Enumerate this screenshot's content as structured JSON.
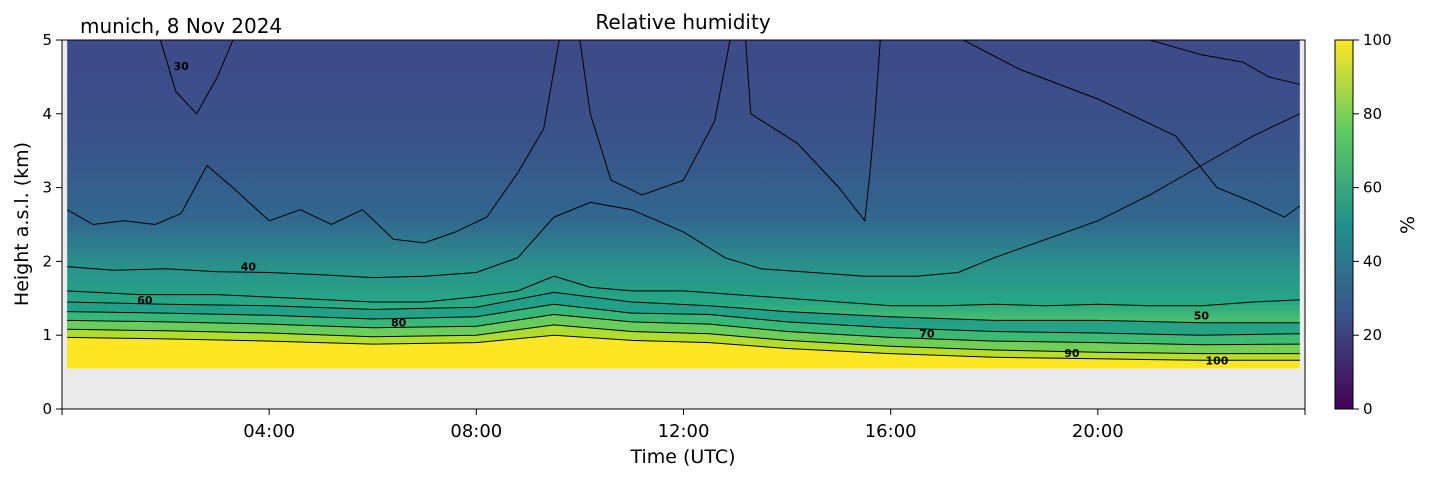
{
  "header": {
    "location_date": "munich, 8 Nov 2024",
    "title": "Relative humidity"
  },
  "chart_data": {
    "type": "heatmap",
    "title": "Relative humidity",
    "corner_text": "munich, 8 Nov 2024",
    "xlabel": "Time (UTC)",
    "ylabel": "Height a.s.l. (km)",
    "x_unit": "hours UTC",
    "xlim": [
      0,
      24
    ],
    "ylim": [
      0,
      5
    ],
    "x_ticks": [
      {
        "value": 4,
        "label": "04:00"
      },
      {
        "value": 8,
        "label": "08:00"
      },
      {
        "value": 12,
        "label": "12:00"
      },
      {
        "value": 16,
        "label": "16:00"
      },
      {
        "value": 20,
        "label": "20:00"
      }
    ],
    "y_ticks": [
      {
        "value": 0,
        "label": "0"
      },
      {
        "value": 1,
        "label": "1"
      },
      {
        "value": 2,
        "label": "2"
      },
      {
        "value": 3,
        "label": "3"
      },
      {
        "value": 4,
        "label": "4"
      },
      {
        "value": 5,
        "label": "5"
      }
    ],
    "colorbar": {
      "label": "%",
      "range": [
        0,
        100
      ],
      "colormap": "viridis",
      "colors": [
        "#440154",
        "#3b528b",
        "#21918c",
        "#5ec962",
        "#fde725"
      ],
      "ticks": [
        {
          "value": 0,
          "label": "0"
        },
        {
          "value": 20,
          "label": "20"
        },
        {
          "value": 40,
          "label": "40"
        },
        {
          "value": 60,
          "label": "60"
        },
        {
          "value": 80,
          "label": "80"
        },
        {
          "value": 100,
          "label": "100"
        }
      ]
    },
    "data_lowest_height_km": 0.55,
    "data_time_range": [
      0.1,
      23.9
    ],
    "no_data_color": "#ebebeb",
    "contour_levels": [
      30,
      40,
      50,
      60,
      70,
      80,
      90,
      100
    ],
    "contour_lines": [
      {
        "level": 30,
        "points": [
          [
            0.1,
            2.7
          ],
          [
            0.6,
            2.5
          ],
          [
            1.2,
            2.55
          ],
          [
            1.8,
            2.5
          ],
          [
            2.3,
            2.65
          ],
          [
            2.8,
            3.3
          ],
          [
            3.3,
            3.0
          ],
          [
            4.0,
            2.55
          ],
          [
            4.6,
            2.7
          ],
          [
            5.2,
            2.5
          ],
          [
            5.8,
            2.7
          ],
          [
            6.4,
            2.3
          ],
          [
            7.0,
            2.25
          ],
          [
            7.6,
            2.4
          ],
          [
            8.2,
            2.6
          ],
          [
            8.8,
            3.2
          ],
          [
            9.3,
            3.8
          ],
          [
            9.6,
            5.0
          ]
        ]
      },
      {
        "level": 30,
        "points": [
          [
            10.0,
            5.0
          ],
          [
            10.2,
            4.0
          ],
          [
            10.6,
            3.1
          ],
          [
            11.2,
            2.9
          ],
          [
            12.0,
            3.1
          ],
          [
            12.6,
            3.9
          ],
          [
            12.9,
            5.0
          ]
        ]
      },
      {
        "level": 30,
        "points": [
          [
            15.8,
            5.0
          ],
          [
            15.7,
            4.0
          ],
          [
            15.6,
            3.2
          ],
          [
            15.5,
            2.55
          ],
          [
            15.0,
            3.0
          ],
          [
            14.2,
            3.6
          ],
          [
            13.3,
            4.0
          ],
          [
            13.2,
            5.0
          ]
        ]
      },
      {
        "level": 30,
        "points": [
          [
            1.9,
            5.0
          ],
          [
            2.2,
            4.3
          ],
          [
            2.6,
            4.0
          ],
          [
            3.0,
            4.5
          ],
          [
            3.3,
            5.0
          ]
        ]
      },
      {
        "level": 30,
        "points": [
          [
            17.4,
            5.0
          ],
          [
            18.5,
            4.6
          ],
          [
            20.0,
            4.2
          ],
          [
            21.5,
            3.7
          ],
          [
            22.3,
            3.0
          ],
          [
            23.0,
            2.8
          ],
          [
            23.6,
            2.6
          ],
          [
            23.9,
            2.75
          ]
        ]
      },
      {
        "level": 30,
        "points": [
          [
            21.0,
            5.0
          ],
          [
            22.0,
            4.8
          ],
          [
            22.8,
            4.7
          ],
          [
            23.3,
            4.5
          ],
          [
            23.9,
            4.4
          ]
        ]
      },
      {
        "level": 40,
        "points": [
          [
            0.1,
            1.93
          ],
          [
            1.0,
            1.88
          ],
          [
            2.0,
            1.9
          ],
          [
            3.0,
            1.86
          ],
          [
            4.0,
            1.85
          ],
          [
            5.0,
            1.82
          ],
          [
            6.0,
            1.78
          ],
          [
            7.0,
            1.8
          ],
          [
            8.0,
            1.85
          ],
          [
            8.8,
            2.05
          ],
          [
            9.5,
            2.6
          ],
          [
            10.2,
            2.8
          ],
          [
            11.0,
            2.7
          ],
          [
            12.0,
            2.4
          ],
          [
            12.8,
            2.05
          ],
          [
            13.5,
            1.9
          ],
          [
            14.5,
            1.85
          ],
          [
            15.5,
            1.8
          ],
          [
            16.5,
            1.8
          ],
          [
            17.3,
            1.85
          ],
          [
            18.0,
            2.05
          ],
          [
            19.0,
            2.3
          ],
          [
            20.0,
            2.55
          ],
          [
            21.0,
            2.9
          ],
          [
            22.0,
            3.3
          ],
          [
            23.0,
            3.7
          ],
          [
            23.9,
            4.0
          ]
        ]
      },
      {
        "level": 50,
        "points": [
          [
            0.1,
            1.6
          ],
          [
            1.5,
            1.55
          ],
          [
            3.0,
            1.55
          ],
          [
            4.5,
            1.5
          ],
          [
            6.0,
            1.45
          ],
          [
            7.0,
            1.45
          ],
          [
            8.0,
            1.52
          ],
          [
            8.8,
            1.6
          ],
          [
            9.5,
            1.8
          ],
          [
            10.2,
            1.65
          ],
          [
            11.0,
            1.6
          ],
          [
            12.0,
            1.6
          ],
          [
            13.0,
            1.55
          ],
          [
            14.0,
            1.5
          ],
          [
            15.0,
            1.45
          ],
          [
            16.0,
            1.4
          ],
          [
            17.0,
            1.4
          ],
          [
            18.0,
            1.42
          ],
          [
            19.0,
            1.4
          ],
          [
            20.0,
            1.42
          ],
          [
            21.0,
            1.4
          ],
          [
            22.0,
            1.4
          ],
          [
            23.0,
            1.45
          ],
          [
            23.9,
            1.48
          ]
        ]
      },
      {
        "level": 60,
        "points": [
          [
            0.1,
            1.45
          ],
          [
            2.0,
            1.42
          ],
          [
            4.0,
            1.4
          ],
          [
            6.0,
            1.35
          ],
          [
            8.0,
            1.38
          ],
          [
            9.5,
            1.58
          ],
          [
            11.0,
            1.45
          ],
          [
            12.5,
            1.4
          ],
          [
            14.0,
            1.32
          ],
          [
            16.0,
            1.25
          ],
          [
            18.0,
            1.2
          ],
          [
            20.0,
            1.2
          ],
          [
            22.0,
            1.17
          ],
          [
            23.9,
            1.17
          ]
        ]
      },
      {
        "level": 70,
        "points": [
          [
            0.1,
            1.32
          ],
          [
            2.0,
            1.3
          ],
          [
            4.0,
            1.27
          ],
          [
            6.0,
            1.22
          ],
          [
            8.0,
            1.25
          ],
          [
            9.5,
            1.42
          ],
          [
            11.0,
            1.3
          ],
          [
            12.5,
            1.28
          ],
          [
            14.0,
            1.18
          ],
          [
            16.0,
            1.1
          ],
          [
            18.0,
            1.05
          ],
          [
            20.0,
            1.03
          ],
          [
            22.0,
            1.0
          ],
          [
            23.9,
            1.02
          ]
        ]
      },
      {
        "level": 80,
        "points": [
          [
            0.1,
            1.2
          ],
          [
            2.0,
            1.18
          ],
          [
            4.0,
            1.15
          ],
          [
            6.0,
            1.1
          ],
          [
            8.0,
            1.12
          ],
          [
            9.5,
            1.28
          ],
          [
            11.0,
            1.18
          ],
          [
            12.5,
            1.15
          ],
          [
            14.0,
            1.05
          ],
          [
            16.0,
            0.97
          ],
          [
            18.0,
            0.92
          ],
          [
            20.0,
            0.9
          ],
          [
            22.0,
            0.87
          ],
          [
            23.9,
            0.88
          ]
        ]
      },
      {
        "level": 90,
        "points": [
          [
            0.1,
            1.08
          ],
          [
            2.0,
            1.06
          ],
          [
            4.0,
            1.03
          ],
          [
            6.0,
            0.98
          ],
          [
            8.0,
            1.0
          ],
          [
            9.5,
            1.14
          ],
          [
            11.0,
            1.05
          ],
          [
            12.5,
            1.02
          ],
          [
            14.0,
            0.93
          ],
          [
            16.0,
            0.85
          ],
          [
            18.0,
            0.8
          ],
          [
            20.0,
            0.77
          ],
          [
            22.0,
            0.75
          ],
          [
            23.9,
            0.75
          ]
        ]
      },
      {
        "level": 100,
        "points": [
          [
            0.1,
            0.97
          ],
          [
            2.0,
            0.95
          ],
          [
            4.0,
            0.92
          ],
          [
            6.0,
            0.88
          ],
          [
            8.0,
            0.9
          ],
          [
            9.5,
            1.0
          ],
          [
            11.0,
            0.93
          ],
          [
            12.5,
            0.9
          ],
          [
            14.0,
            0.82
          ],
          [
            16.0,
            0.75
          ],
          [
            18.0,
            0.7
          ],
          [
            20.0,
            0.68
          ],
          [
            22.0,
            0.66
          ],
          [
            23.9,
            0.66
          ]
        ]
      }
    ],
    "contour_labels": [
      {
        "text": "30",
        "x": 2.3,
        "y": 4.65
      },
      {
        "text": "40",
        "x": 3.6,
        "y": 1.93
      },
      {
        "text": "60",
        "x": 1.6,
        "y": 1.48
      },
      {
        "text": "80",
        "x": 6.5,
        "y": 1.17
      },
      {
        "text": "70",
        "x": 16.7,
        "y": 1.02
      },
      {
        "text": "50",
        "x": 22.0,
        "y": 1.27
      },
      {
        "text": "90",
        "x": 19.5,
        "y": 0.76
      },
      {
        "text": "100",
        "x": 22.3,
        "y": 0.66
      }
    ]
  }
}
